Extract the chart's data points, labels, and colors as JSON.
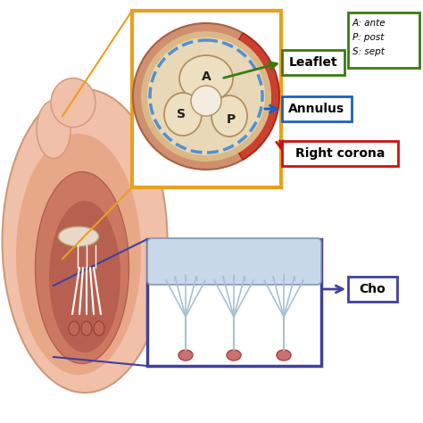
{
  "bg_color": "#ffffff",
  "orange_box_color": "#e8a020",
  "purple_box_color": "#4040a0",
  "green_label_color": "#3a7a10",
  "blue_label_color": "#1a60c0",
  "red_label_color": "#cc1010",
  "annulus_dashed_color": "#5090d0",
  "chordae_fill": "#b8ccdc",
  "valve_outer_color": "#c87850",
  "valve_mid_color": "#dbb888",
  "valve_inner_color": "#e8d8b8",
  "leaflet_color": "#ede0c0",
  "leaflet_edge": "#b09060",
  "heart_outer": "#f0c0a8",
  "heart_mid": "#e8a888",
  "heart_inner": "#cc7860",
  "heart_chamber": "#b86050",
  "papillary_color": "#cc7070",
  "papillary_edge": "#aa4040",
  "label_leaflet": "Leaflet",
  "label_annulus": "Annulus",
  "label_right_corona": "Right corona",
  "label_cho": "Cho",
  "label_A": "A",
  "label_S": "S",
  "label_P": "P"
}
